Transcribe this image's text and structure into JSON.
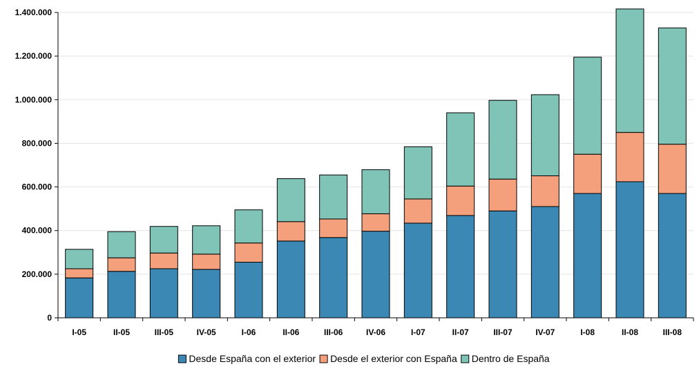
{
  "chart_data": {
    "type": "bar",
    "stacked": true,
    "categories": [
      "I-05",
      "II-05",
      "III-05",
      "IV-05",
      "I-06",
      "II-06",
      "III-06",
      "IV-06",
      "I-07",
      "II-07",
      "III-07",
      "IV-07",
      "I-08",
      "II-08",
      "III-08"
    ],
    "series": [
      {
        "name": "Desde España con el exterior",
        "color": "#3b88b4",
        "values": [
          183000,
          213000,
          225000,
          222000,
          255000,
          352000,
          368000,
          397000,
          434000,
          469000,
          490000,
          510000,
          570000,
          624000,
          570000
        ]
      },
      {
        "name": "Desde el exterior con España",
        "color": "#f4a07c",
        "values": [
          42000,
          62000,
          72000,
          70000,
          88000,
          89000,
          85000,
          80000,
          111000,
          135000,
          146000,
          141000,
          180000,
          226000,
          226000
        ]
      },
      {
        "name": "Dentro de España",
        "color": "#80c4b8",
        "values": [
          89000,
          120000,
          122000,
          130000,
          152000,
          197000,
          202000,
          202000,
          239000,
          336000,
          361000,
          372000,
          445000,
          566000,
          533000
        ]
      }
    ],
    "ylim": [
      0,
      1400000
    ],
    "yticks": [
      "0",
      "200.000",
      "400.000",
      "600.000",
      "800.000",
      "1.000.000",
      "1.200.000",
      "1.400.000"
    ],
    "ytick_values": [
      0,
      200000,
      400000,
      600000,
      800000,
      1000000,
      1200000,
      1400000
    ],
    "grid": true,
    "legend_position": "bottom"
  }
}
